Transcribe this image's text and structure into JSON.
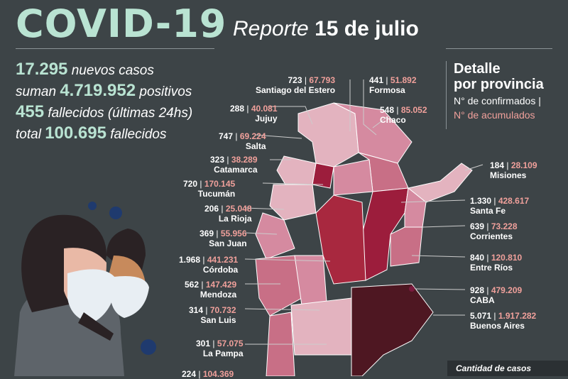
{
  "header": {
    "title": "COVID-19",
    "report_word": "Reporte",
    "report_date": "15 de julio"
  },
  "stats": {
    "new_cases_value": "17.295",
    "new_cases_text": "nuevos casos",
    "total_prefix": "suman",
    "total_positive_value": "4.719.952",
    "total_positive_text": "positivos",
    "deaths_value": "455",
    "deaths_text": "fallecidos",
    "deaths_period": "(últimas 24hs)",
    "total_deaths_prefix": "total",
    "total_deaths_value": "100.695",
    "total_deaths_text": "fallecidos"
  },
  "legend": {
    "title_line1": "Detalle",
    "title_line2": "por provincia",
    "confirmed": "N° de confirmados |",
    "accumulated": "N° de acumulados"
  },
  "provinces": [
    {
      "name": "Santiago del Estero",
      "new": "723",
      "acc": "67.793"
    },
    {
      "name": "Formosa",
      "new": "441",
      "acc": "51.892"
    },
    {
      "name": "Jujuy",
      "new": "288",
      "acc": "40.081"
    },
    {
      "name": "Chaco",
      "new": "548",
      "acc": "85.052"
    },
    {
      "name": "Salta",
      "new": "747",
      "acc": "69.224"
    },
    {
      "name": "Catamarca",
      "new": "323",
      "acc": "38.289"
    },
    {
      "name": "Misiones",
      "new": "184",
      "acc": "28.109"
    },
    {
      "name": "Tucumán",
      "new": "720",
      "acc": "170.145"
    },
    {
      "name": "Santa Fe",
      "new": "1.330",
      "acc": "428.617"
    },
    {
      "name": "La Rioja",
      "new": "206",
      "acc": "25.048"
    },
    {
      "name": "Corrientes",
      "new": "639",
      "acc": "73.228"
    },
    {
      "name": "San Juan",
      "new": "369",
      "acc": "55.956"
    },
    {
      "name": "Entre Ríos",
      "new": "840",
      "acc": "120.810"
    },
    {
      "name": "Córdoba",
      "new": "1.968",
      "acc": "441.231"
    },
    {
      "name": "CABA",
      "new": "928",
      "acc": "479.209"
    },
    {
      "name": "Mendoza",
      "new": "562",
      "acc": "147.429"
    },
    {
      "name": "San Luis",
      "new": "314",
      "acc": "70.732"
    },
    {
      "name": "Buenos Aires",
      "new": "5.071",
      "acc": "1.917.282"
    },
    {
      "name": "La Pampa",
      "new": "301",
      "acc": "57.075"
    },
    {
      "name": "",
      "new": "224",
      "acc": "104.369"
    }
  ],
  "footer": {
    "scale_label": "Cantidad de casos"
  },
  "colors": {
    "background": "#3d4447",
    "title": "#b9e3d2",
    "accent": "#f0a09b",
    "map_light": "#e3b3bf",
    "map_mid": "#c86f86",
    "map_dark": "#9c1d3c",
    "map_darkest": "#4e1722"
  }
}
